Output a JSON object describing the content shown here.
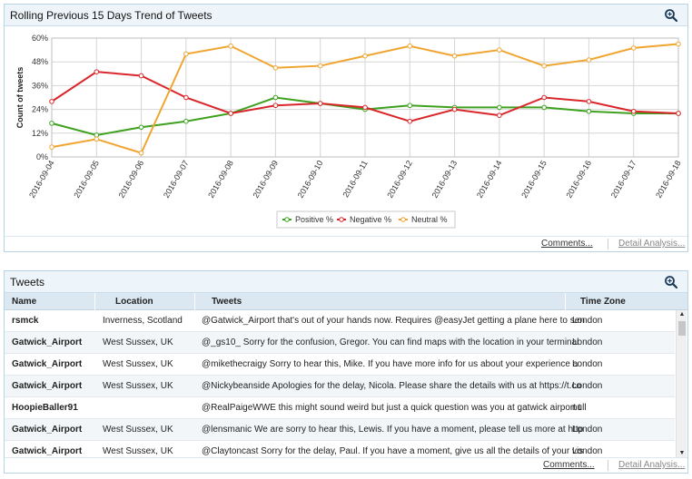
{
  "chart_panel": {
    "title": "Rolling Previous 15 Days Trend of Tweets",
    "comments_link": "Comments...",
    "detail_link": "Detail Analysis..."
  },
  "chart_data": {
    "type": "line",
    "title": "",
    "xlabel": "",
    "ylabel": "Count of tweets",
    "x": [
      "2016-09-04",
      "2016-09-05",
      "2016-09-06",
      "2016-09-07",
      "2016-09-08",
      "2016-09-09",
      "2016-09-10",
      "2016-09-11",
      "2016-09-12",
      "2016-09-13",
      "2016-09-14",
      "2016-09-15",
      "2016-09-16",
      "2016-09-17",
      "2016-09-18"
    ],
    "yticks": [
      "0%",
      "12%",
      "24%",
      "36%",
      "48%",
      "60%"
    ],
    "ylim": [
      0,
      60
    ],
    "grid": true,
    "legend_position": "bottom-center",
    "series": [
      {
        "name": "Positive %",
        "color": "#3ea11f",
        "values": [
          17,
          11,
          15,
          18,
          22,
          30,
          27,
          24,
          26,
          25,
          25,
          25,
          23,
          22,
          22
        ]
      },
      {
        "name": "Negative %",
        "color": "#d9262a",
        "values": [
          28,
          43,
          41,
          30,
          22,
          26,
          27,
          25,
          18,
          24,
          21,
          30,
          28,
          23,
          22
        ]
      },
      {
        "name": "Neutral %",
        "color": "#f0a531",
        "values": [
          5,
          9,
          2,
          52,
          56,
          45,
          46,
          51,
          56,
          51,
          54,
          46,
          49,
          55,
          57
        ]
      }
    ]
  },
  "tweets_panel": {
    "title": "Tweets",
    "columns": [
      "Name",
      "Location",
      "Tweets",
      "Time Zone"
    ],
    "rows": [
      {
        "name": "rsmck",
        "location": "Inverness, Scotland",
        "tweet": "@Gatwick_Airport that's out of your hands now. Requires @easyJet getting a plane here to sen",
        "tz": "London"
      },
      {
        "name": "Gatwick_Airport",
        "location": "West Sussex, UK",
        "tweet": "@_gs10_ Sorry for the confusion, Gregor. You can find maps with the location in your terminal",
        "tz": "London"
      },
      {
        "name": "Gatwick_Airport",
        "location": "West Sussex, UK",
        "tweet": "@mikethecraigy Sorry to hear this, Mike. If you have more info for us about your experience a",
        "tz": "London"
      },
      {
        "name": "Gatwick_Airport",
        "location": "West Sussex, UK",
        "tweet": "@Nickybeanside Apologies for the delay, Nicola. Please share the details with us at https://t.co",
        "tz": "London"
      },
      {
        "name": "HoopieBaller91",
        "location": "",
        "tweet": "@RealPaigeWWE this might sound weird but just a quick question was you at gatwick airport t",
        "tz": "null"
      },
      {
        "name": "Gatwick_Airport",
        "location": "West Sussex, UK",
        "tweet": "@lensmanic We are sorry to hear this, Lewis. If you have a moment, please tell us more at http",
        "tz": "London"
      },
      {
        "name": "Gatwick_Airport",
        "location": "West Sussex, UK",
        "tweet": "@Claytoncast Sorry for the delay, Paul. If you have a moment, give us all the details of your vis",
        "tz": "London"
      }
    ],
    "comments_link": "Comments...",
    "detail_link": "Detail Analysis..."
  },
  "icons": {
    "zoom": "magnifier-plus-icon",
    "scroll_up": "chevron-up-icon",
    "scroll_down": "chevron-down-icon"
  }
}
